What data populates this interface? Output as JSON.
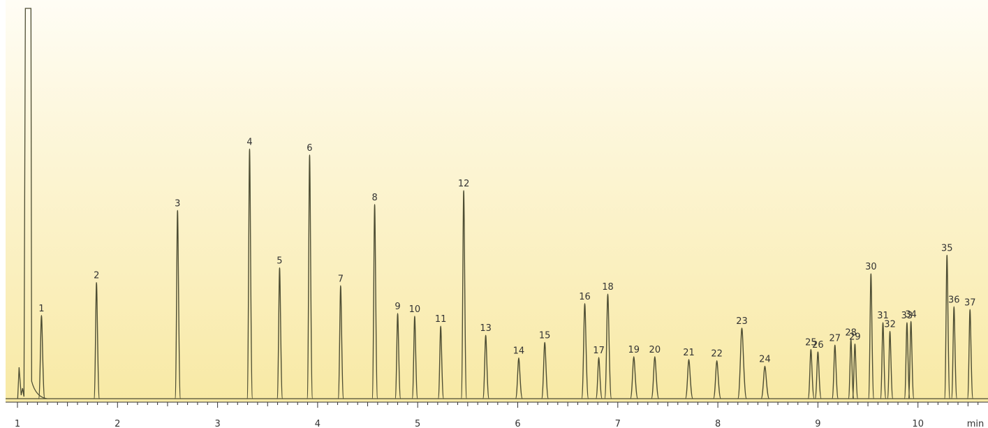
{
  "chart_data": {
    "type": "line",
    "title": "",
    "xlabel": "",
    "ylabel": "",
    "x_unit_label": "min",
    "xlim": [
      0.95,
      10.65
    ],
    "ylim": [
      0,
      100
    ],
    "x_ticks": [
      1,
      2,
      3,
      4,
      5,
      6,
      7,
      8,
      9,
      10
    ],
    "grid": false,
    "legend": "none",
    "baseline": 1.5,
    "solvent_front": {
      "time": 1.1,
      "height": 100
    },
    "peaks": [
      {
        "label": "1",
        "rt": 1.24,
        "height": 22.5,
        "width": 0.0095
      },
      {
        "label": "2",
        "rt": 1.79,
        "height": 30.8,
        "width": 0.0085
      },
      {
        "label": "3",
        "rt": 2.6,
        "height": 49.0,
        "width": 0.0085
      },
      {
        "label": "4",
        "rt": 3.32,
        "height": 64.5,
        "width": 0.0085
      },
      {
        "label": "5",
        "rt": 3.62,
        "height": 34.5,
        "width": 0.0085
      },
      {
        "label": "6",
        "rt": 3.92,
        "height": 63.0,
        "width": 0.0085
      },
      {
        "label": "7",
        "rt": 4.23,
        "height": 30.0,
        "width": 0.0085
      },
      {
        "label": "8",
        "rt": 4.57,
        "height": 50.5,
        "width": 0.0085
      },
      {
        "label": "9",
        "rt": 4.8,
        "height": 23.0,
        "width": 0.0085
      },
      {
        "label": "10",
        "rt": 4.97,
        "height": 22.3,
        "width": 0.0085
      },
      {
        "label": "11",
        "rt": 5.23,
        "height": 19.8,
        "width": 0.0085
      },
      {
        "label": "12",
        "rt": 5.46,
        "height": 54.0,
        "width": 0.0085
      },
      {
        "label": "13",
        "rt": 5.68,
        "height": 17.5,
        "width": 0.0095
      },
      {
        "label": "14",
        "rt": 6.01,
        "height": 11.8,
        "width": 0.0105
      },
      {
        "label": "15",
        "rt": 6.27,
        "height": 15.7,
        "width": 0.0105
      },
      {
        "label": "16",
        "rt": 6.67,
        "height": 25.5,
        "width": 0.0105
      },
      {
        "label": "17",
        "rt": 6.81,
        "height": 11.9,
        "width": 0.0095
      },
      {
        "label": "18",
        "rt": 6.9,
        "height": 27.9,
        "width": 0.0105
      },
      {
        "label": "19",
        "rt": 7.16,
        "height": 12.1,
        "width": 0.0115
      },
      {
        "label": "20",
        "rt": 7.37,
        "height": 12.1,
        "width": 0.0115
      },
      {
        "label": "21",
        "rt": 7.71,
        "height": 11.4,
        "width": 0.0115
      },
      {
        "label": "22",
        "rt": 7.99,
        "height": 11.1,
        "width": 0.0115
      },
      {
        "label": "23",
        "rt": 8.24,
        "height": 19.3,
        "width": 0.0135
      },
      {
        "label": "24",
        "rt": 8.47,
        "height": 9.7,
        "width": 0.0125
      },
      {
        "label": "25",
        "rt": 8.93,
        "height": 13.9,
        "width": 0.0095
      },
      {
        "label": "26",
        "rt": 9.0,
        "height": 13.3,
        "width": 0.0095
      },
      {
        "label": "27",
        "rt": 9.17,
        "height": 15.0,
        "width": 0.0095
      },
      {
        "label": "28",
        "rt": 9.33,
        "height": 16.4,
        "width": 0.0085
      },
      {
        "label": "29",
        "rt": 9.37,
        "height": 15.3,
        "width": 0.0085
      },
      {
        "label": "30",
        "rt": 9.53,
        "height": 33.0,
        "width": 0.0085
      },
      {
        "label": "31",
        "rt": 9.65,
        "height": 20.7,
        "width": 0.0085
      },
      {
        "label": "32",
        "rt": 9.72,
        "height": 18.5,
        "width": 0.0085
      },
      {
        "label": "33",
        "rt": 9.89,
        "height": 20.7,
        "width": 0.0085
      },
      {
        "label": "34",
        "rt": 9.93,
        "height": 21.0,
        "width": 0.0085
      },
      {
        "label": "35",
        "rt": 10.29,
        "height": 37.7,
        "width": 0.0085
      },
      {
        "label": "36",
        "rt": 10.36,
        "height": 24.7,
        "width": 0.0085
      },
      {
        "label": "37",
        "rt": 10.52,
        "height": 24.0,
        "width": 0.0085
      }
    ],
    "colors": {
      "trace": "#4d4d33",
      "background_top": "#fffdf5",
      "background_bottom": "#f8e9a4",
      "axis": "#333333",
      "text": "#333333"
    }
  }
}
